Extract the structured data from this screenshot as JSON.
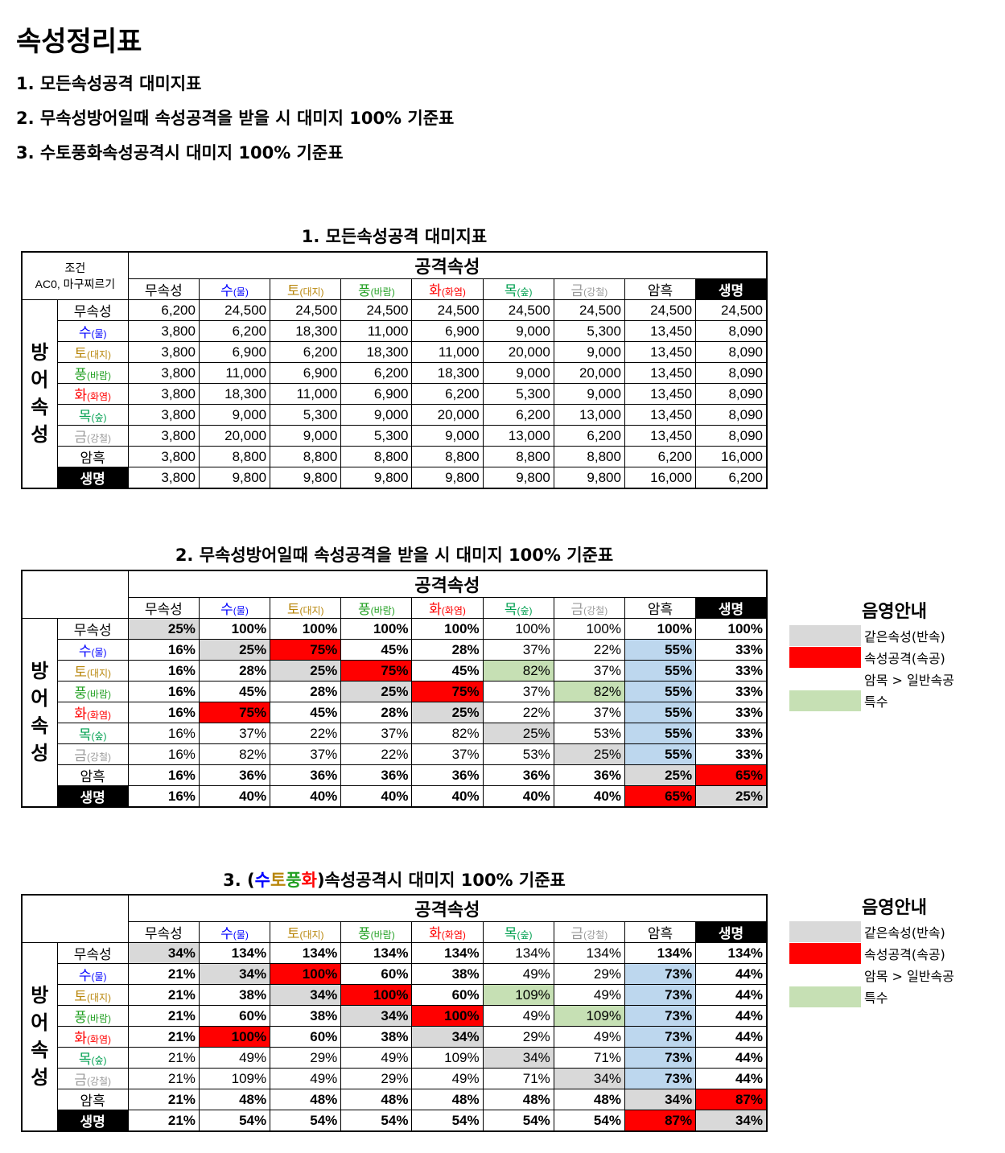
{
  "page_title": "속성정리표",
  "toc": [
    "1. 모든속성공격 대미지표",
    "2. 무속성방어일때 속성공격을 받을 시 대미지 100% 기준표",
    "3. 수토풍화속성공격시 대미지 100% 기준표"
  ],
  "condition": {
    "line1": "조건",
    "line2": "AC0, 마구찌르기"
  },
  "attack_header": "공격속성",
  "defense_header": [
    "방",
    "어",
    "속",
    "성"
  ],
  "elements": [
    {
      "name": "무속성",
      "sub": "",
      "color": "default"
    },
    {
      "name": "수",
      "sub": "(물)",
      "color": "water"
    },
    {
      "name": "토",
      "sub": "(대지)",
      "color": "earth"
    },
    {
      "name": "풍",
      "sub": "(바람)",
      "color": "wind"
    },
    {
      "name": "화",
      "sub": "(화염)",
      "color": "fire"
    },
    {
      "name": "목",
      "sub": "(숲)",
      "color": "wood"
    },
    {
      "name": "금",
      "sub": "(강철)",
      "color": "metal"
    },
    {
      "name": "암흑",
      "sub": "",
      "color": "default"
    },
    {
      "name": "생명",
      "sub": "",
      "color": "black"
    }
  ],
  "colors": {
    "water": "#0000ff",
    "earth": "#b8860b",
    "wind": "#22a022",
    "fire": "#ff0000",
    "wood": "#00a050",
    "metal": "#999999",
    "same": "#d9d9d9",
    "strong": "#ff0000",
    "dark": "#bdd7ee",
    "special": "#c6e0b4"
  },
  "legend": {
    "title": "음영안내",
    "items": [
      {
        "label": "같은속성(반속)",
        "shade": "g"
      },
      {
        "label": "속성공격(속공)",
        "shade": "r"
      },
      {
        "label": "암목 > 일반속공",
        "shade": "bl"
      },
      {
        "label": "특수",
        "shade": "gr"
      }
    ]
  },
  "tables": [
    {
      "title_parts": [
        {
          "t": "1. 모든속성공격 대미지표",
          "c": ""
        }
      ],
      "rows": [
        [
          "6,200",
          "24,500",
          "24,500",
          "24,500",
          "24,500",
          "24,500",
          "24,500",
          "24,500",
          "24,500"
        ],
        [
          "3,800",
          "6,200",
          "18,300",
          "11,000",
          "6,900",
          "9,000",
          "5,300",
          "13,450",
          "8,090"
        ],
        [
          "3,800",
          "6,900",
          "6,200",
          "18,300",
          "11,000",
          "20,000",
          "9,000",
          "13,450",
          "8,090"
        ],
        [
          "3,800",
          "11,000",
          "6,900",
          "6,200",
          "18,300",
          "9,000",
          "20,000",
          "13,450",
          "8,090"
        ],
        [
          "3,800",
          "18,300",
          "11,000",
          "6,900",
          "6,200",
          "5,300",
          "9,000",
          "13,450",
          "8,090"
        ],
        [
          "3,800",
          "9,000",
          "5,300",
          "9,000",
          "20,000",
          "6,200",
          "13,000",
          "13,450",
          "8,090"
        ],
        [
          "3,800",
          "20,000",
          "9,000",
          "5,300",
          "9,000",
          "13,000",
          "6,200",
          "13,450",
          "8,090"
        ],
        [
          "3,800",
          "8,800",
          "8,800",
          "8,800",
          "8,800",
          "8,800",
          "8,800",
          "6,200",
          "16,000"
        ],
        [
          "3,800",
          "9,800",
          "9,800",
          "9,800",
          "9,800",
          "9,800",
          "9,800",
          "16,000",
          "6,200"
        ]
      ],
      "bold": [],
      "shade": []
    },
    {
      "title_parts": [
        {
          "t": "2. 무속성방어일때 속성공격을 받을 시 대미지 100% 기준표",
          "c": ""
        }
      ],
      "rows": [
        [
          "25%",
          "100%",
          "100%",
          "100%",
          "100%",
          "100%",
          "100%",
          "100%",
          "100%"
        ],
        [
          "16%",
          "25%",
          "75%",
          "45%",
          "28%",
          "37%",
          "22%",
          "55%",
          "33%"
        ],
        [
          "16%",
          "28%",
          "25%",
          "75%",
          "45%",
          "82%",
          "37%",
          "55%",
          "33%"
        ],
        [
          "16%",
          "45%",
          "28%",
          "25%",
          "75%",
          "37%",
          "82%",
          "55%",
          "33%"
        ],
        [
          "16%",
          "75%",
          "45%",
          "28%",
          "25%",
          "22%",
          "37%",
          "55%",
          "33%"
        ],
        [
          "16%",
          "37%",
          "22%",
          "37%",
          "82%",
          "25%",
          "53%",
          "55%",
          "33%"
        ],
        [
          "16%",
          "82%",
          "37%",
          "22%",
          "37%",
          "53%",
          "25%",
          "55%",
          "33%"
        ],
        [
          "16%",
          "36%",
          "36%",
          "36%",
          "36%",
          "36%",
          "36%",
          "25%",
          "65%"
        ],
        [
          "16%",
          "40%",
          "40%",
          "40%",
          "40%",
          "40%",
          "40%",
          "65%",
          "25%"
        ]
      ],
      "bold": [
        [
          1,
          1,
          1,
          1,
          1,
          0,
          0,
          1,
          1
        ],
        [
          1,
          1,
          1,
          1,
          1,
          0,
          0,
          1,
          1
        ],
        [
          1,
          1,
          1,
          1,
          1,
          0,
          0,
          1,
          1
        ],
        [
          1,
          1,
          1,
          1,
          1,
          0,
          0,
          1,
          1
        ],
        [
          1,
          1,
          1,
          1,
          1,
          0,
          0,
          1,
          1
        ],
        [
          0,
          0,
          0,
          0,
          0,
          0,
          0,
          1,
          1
        ],
        [
          0,
          0,
          0,
          0,
          0,
          0,
          0,
          1,
          1
        ],
        [
          1,
          1,
          1,
          1,
          1,
          1,
          1,
          1,
          1
        ],
        [
          1,
          1,
          1,
          1,
          1,
          1,
          1,
          1,
          1
        ]
      ],
      "shade": [
        [
          "g",
          "",
          "",
          "",
          "",
          "",
          "",
          "",
          ""
        ],
        [
          "",
          "g",
          "r",
          "",
          "",
          "",
          "",
          "bl",
          ""
        ],
        [
          "",
          "",
          "g",
          "r",
          "",
          "gr",
          "",
          "bl",
          ""
        ],
        [
          "",
          "",
          "",
          "g",
          "r",
          "",
          "gr",
          "bl",
          ""
        ],
        [
          "",
          "r",
          "",
          "",
          "g",
          "",
          "",
          "bl",
          ""
        ],
        [
          "",
          "",
          "",
          "",
          "",
          "g",
          "",
          "bl",
          ""
        ],
        [
          "",
          "",
          "",
          "",
          "",
          "",
          "g",
          "bl",
          ""
        ],
        [
          "",
          "",
          "",
          "",
          "",
          "",
          "",
          "g",
          "r"
        ],
        [
          "",
          "",
          "",
          "",
          "",
          "",
          "",
          "r",
          "g"
        ]
      ]
    },
    {
      "title_parts": [
        {
          "t": "3. (",
          "c": ""
        },
        {
          "t": "수",
          "c": "water"
        },
        {
          "t": "토",
          "c": "earth"
        },
        {
          "t": "풍",
          "c": "wind"
        },
        {
          "t": "화",
          "c": "fire"
        },
        {
          "t": ")속성공격시 대미지 100% 기준표",
          "c": ""
        }
      ],
      "rows": [
        [
          "34%",
          "134%",
          "134%",
          "134%",
          "134%",
          "134%",
          "134%",
          "134%",
          "134%"
        ],
        [
          "21%",
          "34%",
          "100%",
          "60%",
          "38%",
          "49%",
          "29%",
          "73%",
          "44%"
        ],
        [
          "21%",
          "38%",
          "34%",
          "100%",
          "60%",
          "109%",
          "49%",
          "73%",
          "44%"
        ],
        [
          "21%",
          "60%",
          "38%",
          "34%",
          "100%",
          "49%",
          "109%",
          "73%",
          "44%"
        ],
        [
          "21%",
          "100%",
          "60%",
          "38%",
          "34%",
          "29%",
          "49%",
          "73%",
          "44%"
        ],
        [
          "21%",
          "49%",
          "29%",
          "49%",
          "109%",
          "34%",
          "71%",
          "73%",
          "44%"
        ],
        [
          "21%",
          "109%",
          "49%",
          "29%",
          "49%",
          "71%",
          "34%",
          "73%",
          "44%"
        ],
        [
          "21%",
          "48%",
          "48%",
          "48%",
          "48%",
          "48%",
          "48%",
          "34%",
          "87%"
        ],
        [
          "21%",
          "54%",
          "54%",
          "54%",
          "54%",
          "54%",
          "54%",
          "87%",
          "34%"
        ]
      ],
      "bold": [
        [
          1,
          1,
          1,
          1,
          1,
          0,
          0,
          1,
          1
        ],
        [
          1,
          1,
          1,
          1,
          1,
          0,
          0,
          1,
          1
        ],
        [
          1,
          1,
          1,
          1,
          1,
          0,
          0,
          1,
          1
        ],
        [
          1,
          1,
          1,
          1,
          1,
          0,
          0,
          1,
          1
        ],
        [
          1,
          1,
          1,
          1,
          1,
          0,
          0,
          1,
          1
        ],
        [
          0,
          0,
          0,
          0,
          0,
          0,
          0,
          1,
          1
        ],
        [
          0,
          0,
          0,
          0,
          0,
          0,
          0,
          1,
          1
        ],
        [
          1,
          1,
          1,
          1,
          1,
          1,
          1,
          1,
          1
        ],
        [
          1,
          1,
          1,
          1,
          1,
          1,
          1,
          1,
          1
        ]
      ],
      "shade": [
        [
          "g",
          "",
          "",
          "",
          "",
          "",
          "",
          "",
          ""
        ],
        [
          "",
          "g",
          "r",
          "",
          "",
          "",
          "",
          "bl",
          ""
        ],
        [
          "",
          "",
          "g",
          "r",
          "",
          "gr",
          "",
          "bl",
          ""
        ],
        [
          "",
          "",
          "",
          "g",
          "r",
          "",
          "gr",
          "bl",
          ""
        ],
        [
          "",
          "r",
          "",
          "",
          "g",
          "",
          "",
          "bl",
          ""
        ],
        [
          "",
          "",
          "",
          "",
          "",
          "g",
          "",
          "bl",
          ""
        ],
        [
          "",
          "",
          "",
          "",
          "",
          "",
          "g",
          "bl",
          ""
        ],
        [
          "",
          "",
          "",
          "",
          "",
          "",
          "",
          "g",
          "r"
        ],
        [
          "",
          "",
          "",
          "",
          "",
          "",
          "",
          "r",
          "g"
        ]
      ]
    }
  ]
}
